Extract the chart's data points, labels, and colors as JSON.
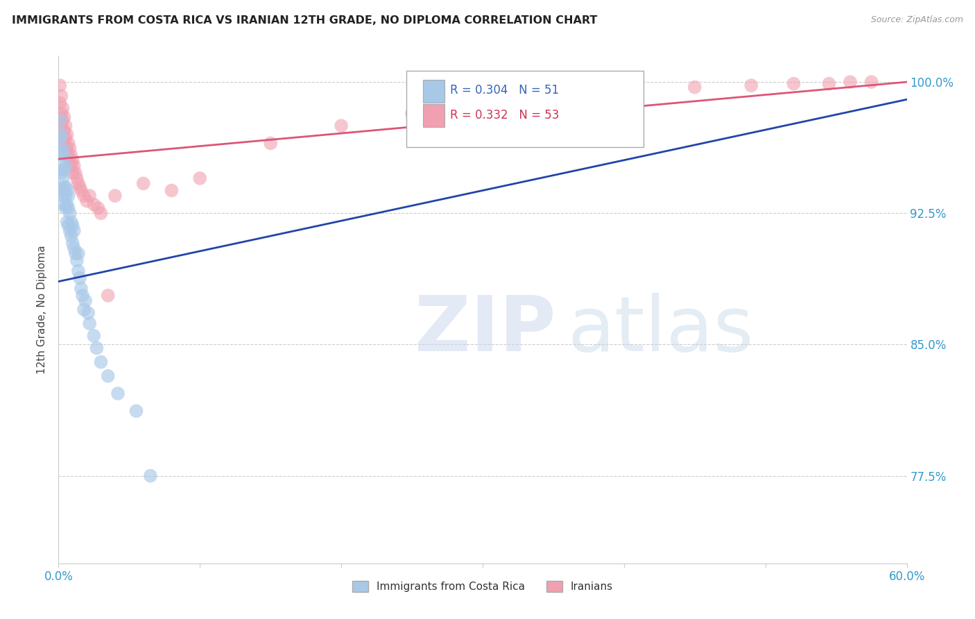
{
  "title": "IMMIGRANTS FROM COSTA RICA VS IRANIAN 12TH GRADE, NO DIPLOMA CORRELATION CHART",
  "source": "Source: ZipAtlas.com",
  "ylabel": "12th Grade, No Diploma",
  "xlim": [
    0.0,
    0.6
  ],
  "ylim": [
    0.725,
    1.015
  ],
  "y_ticks": [
    0.775,
    0.85,
    0.925,
    1.0
  ],
  "y_tick_labels": [
    "77.5%",
    "85.0%",
    "92.5%",
    "100.0%"
  ],
  "blue_color": "#a8c8e8",
  "pink_color": "#f0a0b0",
  "blue_line_color": "#2244aa",
  "pink_line_color": "#dd5577",
  "blue_R": "0.304",
  "blue_N": "51",
  "pink_R": "0.332",
  "pink_N": "53",
  "costa_rica_x": [
    0.001,
    0.001,
    0.001,
    0.002,
    0.002,
    0.002,
    0.002,
    0.003,
    0.003,
    0.003,
    0.003,
    0.004,
    0.004,
    0.004,
    0.004,
    0.005,
    0.005,
    0.005,
    0.005,
    0.006,
    0.006,
    0.006,
    0.007,
    0.007,
    0.007,
    0.008,
    0.008,
    0.009,
    0.009,
    0.01,
    0.01,
    0.011,
    0.011,
    0.012,
    0.013,
    0.014,
    0.014,
    0.015,
    0.016,
    0.017,
    0.018,
    0.019,
    0.021,
    0.022,
    0.025,
    0.027,
    0.03,
    0.035,
    0.042,
    0.055,
    0.065
  ],
  "costa_rica_y": [
    0.958,
    0.968,
    0.978,
    0.938,
    0.948,
    0.96,
    0.97,
    0.935,
    0.945,
    0.95,
    0.962,
    0.93,
    0.94,
    0.95,
    0.958,
    0.928,
    0.935,
    0.94,
    0.952,
    0.92,
    0.93,
    0.938,
    0.918,
    0.928,
    0.935,
    0.915,
    0.925,
    0.912,
    0.92,
    0.908,
    0.918,
    0.905,
    0.915,
    0.902,
    0.898,
    0.892,
    0.902,
    0.888,
    0.882,
    0.878,
    0.87,
    0.875,
    0.868,
    0.862,
    0.855,
    0.848,
    0.84,
    0.832,
    0.822,
    0.812,
    0.775
  ],
  "iranian_x": [
    0.001,
    0.001,
    0.002,
    0.002,
    0.002,
    0.003,
    0.003,
    0.003,
    0.004,
    0.004,
    0.004,
    0.005,
    0.005,
    0.005,
    0.006,
    0.006,
    0.007,
    0.007,
    0.008,
    0.008,
    0.009,
    0.009,
    0.01,
    0.01,
    0.011,
    0.012,
    0.013,
    0.014,
    0.015,
    0.016,
    0.018,
    0.02,
    0.022,
    0.025,
    0.028,
    0.03,
    0.035,
    0.04,
    0.06,
    0.08,
    0.1,
    0.15,
    0.2,
    0.25,
    0.3,
    0.35,
    0.4,
    0.45,
    0.49,
    0.52,
    0.545,
    0.56,
    0.575
  ],
  "iranian_y": [
    0.998,
    0.988,
    0.992,
    0.982,
    0.975,
    0.985,
    0.978,
    0.968,
    0.98,
    0.972,
    0.965,
    0.975,
    0.968,
    0.96,
    0.97,
    0.962,
    0.965,
    0.958,
    0.962,
    0.955,
    0.958,
    0.952,
    0.955,
    0.948,
    0.952,
    0.948,
    0.945,
    0.942,
    0.94,
    0.938,
    0.935,
    0.932,
    0.935,
    0.93,
    0.928,
    0.925,
    0.878,
    0.935,
    0.942,
    0.938,
    0.945,
    0.965,
    0.975,
    0.982,
    0.988,
    0.992,
    0.995,
    0.997,
    0.998,
    0.999,
    0.999,
    1.0,
    1.0
  ],
  "blue_trend_x": [
    0.0,
    0.6
  ],
  "blue_trend_y": [
    0.886,
    0.99
  ],
  "pink_trend_x": [
    0.0,
    0.6
  ],
  "pink_trend_y": [
    0.956,
    1.0
  ]
}
